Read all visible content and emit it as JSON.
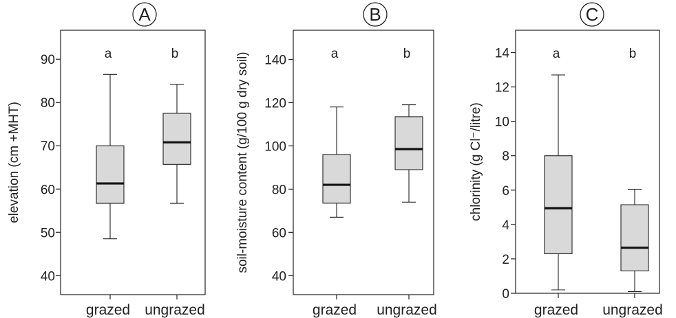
{
  "chart_data": [
    {
      "type": "box",
      "panel_label": "A",
      "ylabel": "elevation (cm +MHT)",
      "categories": [
        "grazed",
        "ungrazed"
      ],
      "yticks": [
        40,
        50,
        60,
        70,
        80,
        90
      ],
      "ylim": [
        35.6,
        96.7
      ],
      "group_letters": [
        "a",
        "b"
      ],
      "boxes": [
        {
          "category": "grazed",
          "whisker_low": 48.5,
          "q1": 56.7,
          "median": 61.3,
          "q3": 70.0,
          "whisker_high": 86.5
        },
        {
          "category": "ungrazed",
          "whisker_low": 56.7,
          "q1": 65.7,
          "median": 70.8,
          "q3": 77.5,
          "whisker_high": 84.2
        }
      ]
    },
    {
      "type": "box",
      "panel_label": "B",
      "ylabel": "soil-moisture content (g/100 g dry soil)",
      "categories": [
        "grazed",
        "ungrazed"
      ],
      "yticks": [
        40,
        60,
        80,
        100,
        120,
        140
      ],
      "ylim": [
        31.2,
        153.5
      ],
      "group_letters": [
        "a",
        "b"
      ],
      "boxes": [
        {
          "category": "grazed",
          "whisker_low": 67.0,
          "q1": 73.5,
          "median": 82.0,
          "q3": 96.0,
          "whisker_high": 118.0
        },
        {
          "category": "ungrazed",
          "whisker_low": 74.0,
          "q1": 89.0,
          "median": 98.5,
          "q3": 113.5,
          "whisker_high": 119.0
        }
      ]
    },
    {
      "type": "box",
      "panel_label": "C",
      "ylabel": "chlorinity (g Cl⁻/litre)",
      "categories": [
        "grazed",
        "ungrazed"
      ],
      "yticks": [
        0,
        2,
        4,
        6,
        8,
        10,
        12,
        14
      ],
      "ylim": [
        0,
        15.3
      ],
      "group_letters": [
        "a",
        "b"
      ],
      "boxes": [
        {
          "category": "grazed",
          "whisker_low": 0.2,
          "q1": 2.3,
          "median": 4.95,
          "q3": 8.0,
          "whisker_high": 12.7
        },
        {
          "category": "ungrazed",
          "whisker_low": 0.1,
          "q1": 1.3,
          "median": 2.65,
          "q3": 5.15,
          "whisker_high": 6.05
        }
      ]
    }
  ],
  "colors": {
    "box_fill": "#d9d9d9",
    "stroke": "#222222"
  }
}
